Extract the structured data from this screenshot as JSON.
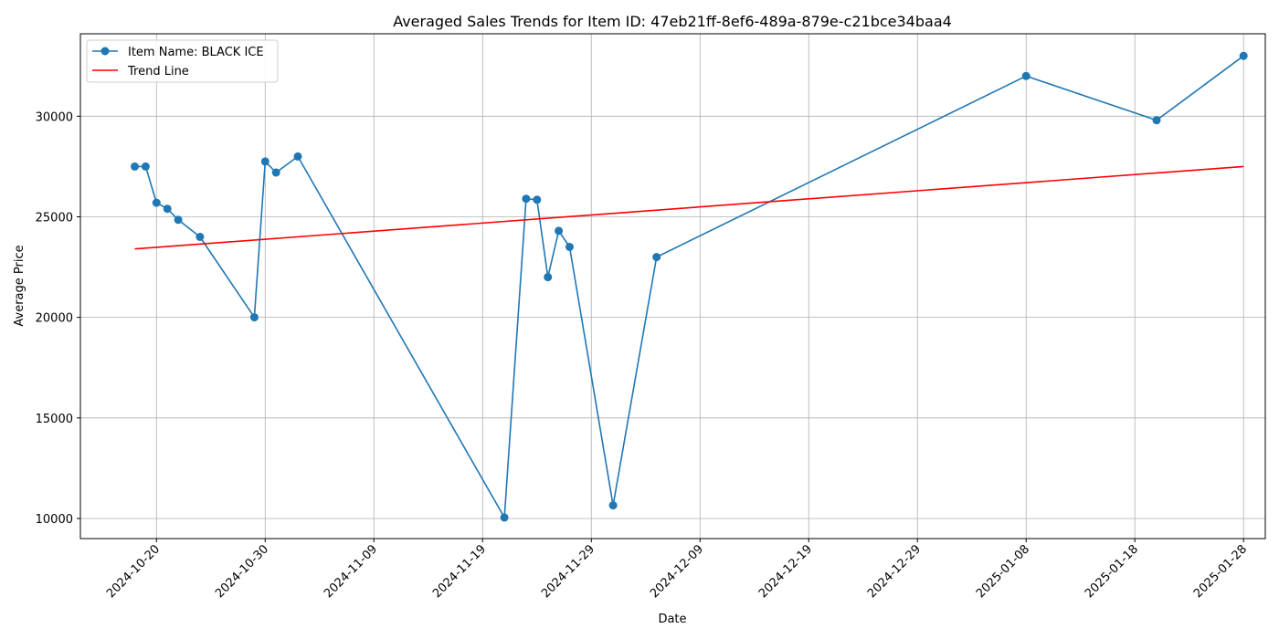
{
  "chart_data": {
    "type": "line",
    "title": "Averaged Sales Trends for Item ID: 47eb21ff-8ef6-489a-879e-c21bce34baa4",
    "xlabel": "Date",
    "ylabel": "Average Price",
    "x_type": "date",
    "xlim": [
      "2024-10-13",
      "2025-01-30"
    ],
    "ylim": [
      9000,
      34100
    ],
    "x_ticks": [
      "2024-10-20",
      "2024-10-30",
      "2024-11-09",
      "2024-11-19",
      "2024-11-29",
      "2024-12-09",
      "2024-12-19",
      "2024-12-29",
      "2025-01-08",
      "2025-01-18",
      "2025-01-28"
    ],
    "y_ticks": [
      10000,
      15000,
      20000,
      25000,
      30000
    ],
    "grid": true,
    "legend_position": "top-left",
    "series": [
      {
        "name": "Item Name: BLACK ICE",
        "color": "#1f77b4",
        "marker": "circle",
        "points": [
          {
            "x": "2024-10-18",
            "y": 27500
          },
          {
            "x": "2024-10-19",
            "y": 27500
          },
          {
            "x": "2024-10-20",
            "y": 25700
          },
          {
            "x": "2024-10-21",
            "y": 25400
          },
          {
            "x": "2024-10-22",
            "y": 24850
          },
          {
            "x": "2024-10-24",
            "y": 24000
          },
          {
            "x": "2024-10-29",
            "y": 20000
          },
          {
            "x": "2024-10-30",
            "y": 27750
          },
          {
            "x": "2024-10-31",
            "y": 27200
          },
          {
            "x": "2024-11-02",
            "y": 28000
          },
          {
            "x": "2024-11-21",
            "y": 10050
          },
          {
            "x": "2024-11-23",
            "y": 25900
          },
          {
            "x": "2024-11-24",
            "y": 25850
          },
          {
            "x": "2024-11-25",
            "y": 22000
          },
          {
            "x": "2024-11-26",
            "y": 24300
          },
          {
            "x": "2024-11-27",
            "y": 23500
          },
          {
            "x": "2024-12-01",
            "y": 10650
          },
          {
            "x": "2024-12-05",
            "y": 23000
          },
          {
            "x": "2025-01-08",
            "y": 32000
          },
          {
            "x": "2025-01-20",
            "y": 29800
          },
          {
            "x": "2025-01-28",
            "y": 33000
          }
        ]
      },
      {
        "name": "Trend Line",
        "color": "#ff0000",
        "marker": "none",
        "points": [
          {
            "x": "2024-10-18",
            "y": 23400
          },
          {
            "x": "2025-01-28",
            "y": 27500
          }
        ]
      }
    ]
  }
}
